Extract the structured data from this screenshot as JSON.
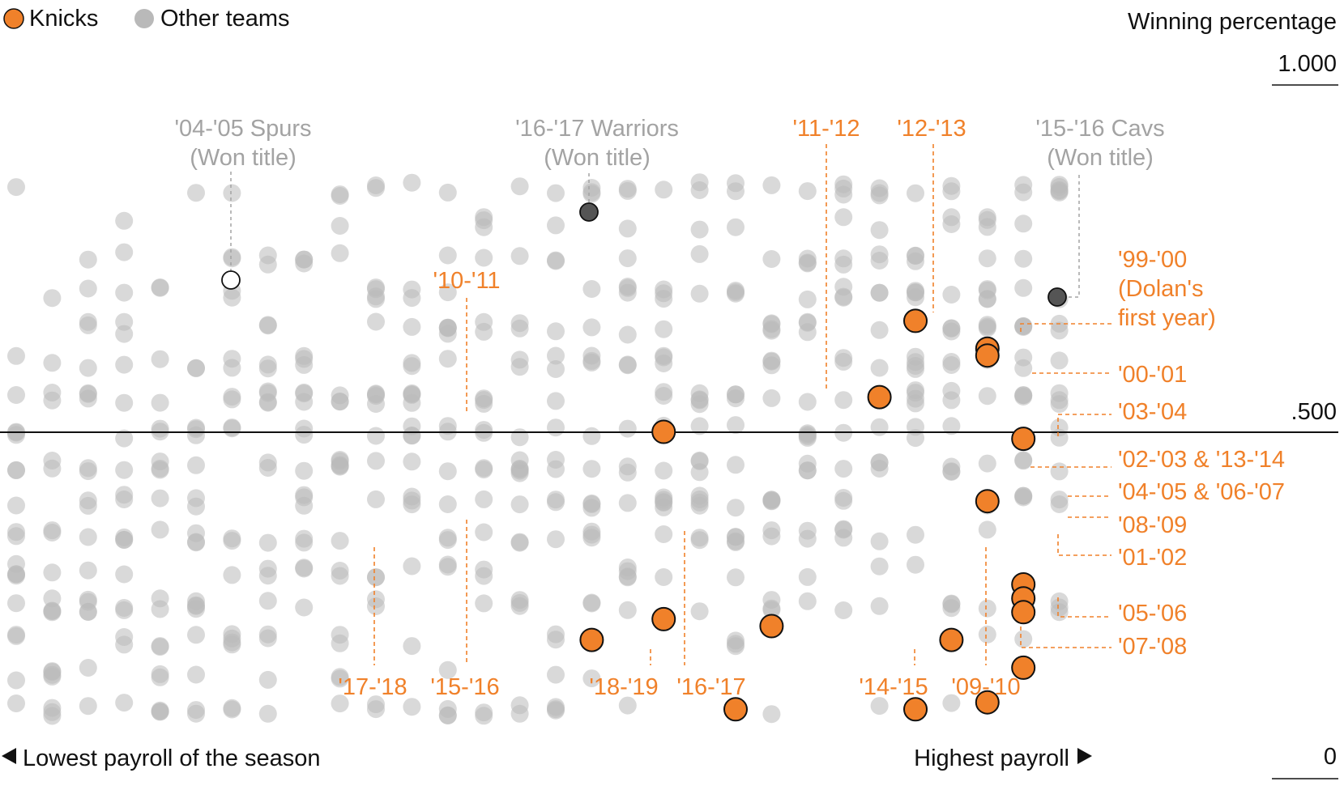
{
  "legend": {
    "knicks_label": "Knicks",
    "other_label": "Other teams"
  },
  "axis": {
    "y_title": "Winning percentage",
    "y_top_label": "1.000",
    "y_mid_label": ".500",
    "y_bottom_label": "0",
    "x_left_label": "Lowest payroll of the season",
    "x_right_label": "Highest payroll"
  },
  "colors": {
    "knicks": "#f0812a",
    "other": "#b9b9b9",
    "champion": "#555555",
    "ink": "#111111",
    "annotation_gray": "#a3a3a3"
  },
  "chart_data": {
    "type": "scatter",
    "x_meaning": "payroll rank within season (1 = lowest, 30 = highest)",
    "y_meaning": "winning percentage",
    "ylim": [
      0,
      1.0
    ],
    "reference_line": 0.5,
    "series": [
      {
        "name": "Knicks",
        "points": [
          {
            "x": 5,
            "y": 0.2,
            "label": "'17-'18"
          },
          {
            "x": 7,
            "y": 0.5,
            "label": "'10-'11"
          },
          {
            "x": 7,
            "y": 0.23,
            "label": "'15-'16"
          },
          {
            "x": 9,
            "y": 0.1,
            "label": "'18-'19"
          },
          {
            "x": 10,
            "y": 0.22,
            "label": "'16-'17"
          },
          {
            "x": 13,
            "y": 0.55,
            "label": "'11-'12"
          },
          {
            "x": 14,
            "y": 0.1,
            "label": "'14-'15"
          },
          {
            "x": 14,
            "y": 0.66,
            "label": "'12-'13"
          },
          {
            "x": 15,
            "y": 0.2,
            "label": "'09-'10"
          },
          {
            "x": 16,
            "y": 0.62,
            "label": "'99-'00 (Dolan's first year)"
          },
          {
            "x": 16,
            "y": 0.61,
            "label": "'00-'01"
          },
          {
            "x": 16,
            "y": 0.4,
            "label": "'02-'03 & '13-'14"
          },
          {
            "x": 16,
            "y": 0.11,
            "label": "'07-'08"
          },
          {
            "x": 17,
            "y": 0.49,
            "label": "'03-'04"
          },
          {
            "x": 17,
            "y": 0.28,
            "label": "'04-'05 & '06-'07"
          },
          {
            "x": 17,
            "y": 0.26,
            "label": "'08-'09"
          },
          {
            "x": 17,
            "y": 0.24,
            "label": "'01-'02"
          },
          {
            "x": 17,
            "y": 0.16,
            "label": "'05-'06"
          }
        ]
      },
      {
        "name": "Other teams",
        "note": "approx. 21 seasons per payroll slot, shown as translucent gray dots"
      }
    ],
    "annotations": [
      {
        "text_line1": "'04-'05 Spurs",
        "text_line2": "(Won title)",
        "x": 4,
        "y": 0.72
      },
      {
        "text_line1": "'16-'17 Warriors",
        "text_line2": "(Won title)",
        "x": 10,
        "y": 0.83
      },
      {
        "text_line1": "'15-'16 Cavs",
        "text_line2": "(Won title)",
        "x": 17,
        "y": 0.7
      }
    ]
  }
}
